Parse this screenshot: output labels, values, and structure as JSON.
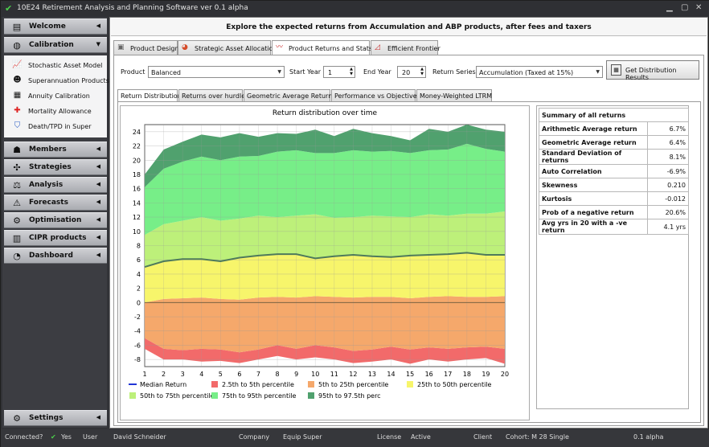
{
  "window": {
    "title": "10E24 Retirement Analysis and Planning Software ver 0.1 alpha"
  },
  "sidebar": {
    "categories": [
      {
        "label": "Welcome",
        "icon": "document-icon"
      },
      {
        "label": "Calibration",
        "icon": "gauge-icon"
      },
      {
        "label": "Members",
        "icon": "group-icon"
      },
      {
        "label": "Strategies",
        "icon": "strategy-icon"
      },
      {
        "label": "Analysis",
        "icon": "scales-icon"
      },
      {
        "label": "Forecasts",
        "icon": "warning-icon"
      },
      {
        "label": "Optimisation",
        "icon": "optimise-icon"
      },
      {
        "label": "CIPR products",
        "icon": "products-icon"
      },
      {
        "label": "Dashboard",
        "icon": "dashboard-icon"
      },
      {
        "label": "Settings",
        "icon": "settings-icon"
      }
    ],
    "calibration_items": [
      {
        "label": "Stochastic Asset Model",
        "icon": "chart-icon"
      },
      {
        "label": "Superannuation Products",
        "icon": "person-icon"
      },
      {
        "label": "Annuity Calibration",
        "icon": "calculator-icon"
      },
      {
        "label": "Mortality Allowance",
        "icon": "first-aid-icon"
      },
      {
        "label": "Death/TPD in Super",
        "icon": "shield-icon"
      }
    ]
  },
  "main": {
    "header": "Explore the expected returns from Accumulation and ABP products, after fees and taxers",
    "tabs": [
      {
        "label": "Product Design"
      },
      {
        "label": "Strategic Asset Allocation"
      },
      {
        "label": "Product Returns and Stats"
      },
      {
        "label": "Efficient Frontier"
      }
    ],
    "controls": {
      "product_label": "Product",
      "product_value": "Balanced",
      "start_year_label": "Start Year",
      "start_year_value": "1",
      "end_year_label": "End Year",
      "end_year_value": "20",
      "return_series_label": "Return Series",
      "return_series_value": "Accumulation (Taxed at 15%)",
      "get_button": "Get Distribution Results"
    },
    "subtabs": [
      "Return Distribution",
      "Returns over hurdle",
      "Geometric Average Returns",
      "Performance vs Objectives",
      "Money-Weighted LTRM"
    ],
    "summary": {
      "title": "Summary of all returns",
      "rows": [
        {
          "label": "Arithmetic Average return",
          "value": "6.7%"
        },
        {
          "label": "Geometric Average return",
          "value": "6.4%"
        },
        {
          "label": "Standard Deviation of returns",
          "value": "8.1%"
        },
        {
          "label": "Auto Correlation",
          "value": "-6.9%"
        },
        {
          "label": "Skewness",
          "value": "0.210"
        },
        {
          "label": "Kurtosis",
          "value": "-0.012"
        },
        {
          "label": "Prob of a negative return",
          "value": "20.6%"
        },
        {
          "label": "Avg yrs in 20 with a -ve return",
          "value": "4.1 yrs"
        }
      ]
    }
  },
  "chart_data": {
    "type": "area",
    "title": "Return distribution over time",
    "x": [
      1,
      2,
      3,
      4,
      5,
      6,
      7,
      8,
      9,
      10,
      11,
      12,
      13,
      14,
      15,
      16,
      17,
      18,
      19,
      20
    ],
    "ylim": [
      -9,
      25
    ],
    "yticks": [
      -8,
      -6,
      -4,
      -2,
      0,
      2,
      4,
      6,
      8,
      10,
      12,
      14,
      16,
      18,
      20,
      22,
      24
    ],
    "legend_position": "bottom",
    "bands": [
      {
        "name": "2.5th to 5th percentile",
        "color": "#f26a6a",
        "lower": [
          -6.5,
          -8,
          -8,
          -8.3,
          -8.2,
          -8.5,
          -8,
          -7.5,
          -8,
          -7.7,
          -8,
          -8.5,
          -8.3,
          -8,
          -8.6,
          -8,
          -8.3,
          -8,
          -7.8,
          -8.6
        ],
        "upper": [
          -5,
          -6.5,
          -6.7,
          -6.5,
          -6.6,
          -7,
          -6.6,
          -6,
          -6.5,
          -6,
          -6.3,
          -6.8,
          -6.6,
          -6.2,
          -6.6,
          -6.3,
          -6.5,
          -6.3,
          -6.2,
          -6.5
        ]
      },
      {
        "name": "5th to 25th percentile",
        "color": "#f5a86b",
        "lower": [
          -5,
          -6.5,
          -6.7,
          -6.5,
          -6.6,
          -7,
          -6.6,
          -6,
          -6.5,
          -6,
          -6.3,
          -6.8,
          -6.6,
          -6.2,
          -6.6,
          -6.3,
          -6.5,
          -6.3,
          -6.2,
          -6.5
        ],
        "upper": [
          0,
          0.5,
          0.6,
          0.7,
          0.5,
          0.4,
          0.7,
          0.8,
          0.7,
          0.9,
          0.8,
          0.7,
          0.8,
          0.8,
          0.6,
          0.8,
          0.9,
          0.8,
          0.8,
          0.9
        ]
      },
      {
        "name": "25th to 50th percentile",
        "color": "#f7f56b",
        "lower": [
          0,
          0.5,
          0.6,
          0.7,
          0.5,
          0.4,
          0.7,
          0.8,
          0.7,
          0.9,
          0.8,
          0.7,
          0.8,
          0.8,
          0.6,
          0.8,
          0.9,
          0.8,
          0.8,
          0.9
        ],
        "upper": [
          5,
          5.8,
          6.1,
          6.1,
          5.8,
          6.3,
          6.6,
          6.8,
          6.8,
          6.2,
          6.5,
          6.7,
          6.5,
          6.4,
          6.6,
          6.7,
          6.8,
          7,
          6.7,
          6.7
        ]
      },
      {
        "name": "50th to 75th percentile",
        "color": "#bdf07a",
        "lower": [
          5,
          5.8,
          6.1,
          6.1,
          5.8,
          6.3,
          6.6,
          6.8,
          6.8,
          6.2,
          6.5,
          6.7,
          6.5,
          6.4,
          6.6,
          6.7,
          6.8,
          7,
          6.7,
          6.7
        ],
        "upper": [
          9.5,
          11,
          11.5,
          12,
          11.5,
          11.8,
          12.2,
          12,
          12.2,
          12.4,
          11.9,
          12,
          12.2,
          12.1,
          12,
          12.4,
          12.2,
          12.5,
          12.5,
          12.8
        ]
      },
      {
        "name": "75th to 95th percentile",
        "color": "#77ee88",
        "lower": [
          9.5,
          11,
          11.5,
          12,
          11.5,
          11.8,
          12.2,
          12,
          12.2,
          12.4,
          11.9,
          12,
          12.2,
          12.1,
          12,
          12.4,
          12.2,
          12.5,
          12.5,
          12.8
        ],
        "upper": [
          16.2,
          18.8,
          19.8,
          20.5,
          20,
          20.5,
          20.6,
          21.2,
          21.4,
          21,
          21,
          21.4,
          21.2,
          21.3,
          21,
          21.4,
          21.5,
          22.3,
          21.6,
          21.2
        ]
      },
      {
        "name": "95th to 97.5th perc",
        "color": "#50a16e",
        "lower": [
          16.2,
          18.8,
          19.8,
          20.5,
          20,
          20.5,
          20.6,
          21.2,
          21.4,
          21,
          21,
          21.4,
          21.2,
          21.3,
          21,
          21.4,
          21.5,
          22.3,
          21.6,
          21.2
        ],
        "upper": [
          18,
          21.5,
          22.6,
          23.6,
          23.2,
          23.8,
          23.3,
          23.8,
          23.7,
          24.3,
          23.4,
          24.4,
          23.8,
          23.4,
          22.8,
          24.4,
          24,
          25,
          24.3,
          24
        ]
      }
    ],
    "median": {
      "name": "Median Return",
      "color": "#2236d6",
      "values": [
        5,
        5.8,
        6.1,
        6.1,
        5.8,
        6.3,
        6.6,
        6.8,
        6.8,
        6.2,
        6.5,
        6.7,
        6.5,
        6.4,
        6.6,
        6.7,
        6.8,
        7,
        6.7,
        6.7
      ]
    }
  },
  "statusbar": {
    "connected_label": "Connected?",
    "connected_value": "Yes",
    "user_label": "User",
    "user_value": "David Schneider",
    "company_label": "Company",
    "company_value": "Equip Super",
    "license_label": "License",
    "license_value": "Active",
    "client_label": "Client",
    "client_value": "Cohort: M 28 Single",
    "version": "0.1 alpha"
  }
}
